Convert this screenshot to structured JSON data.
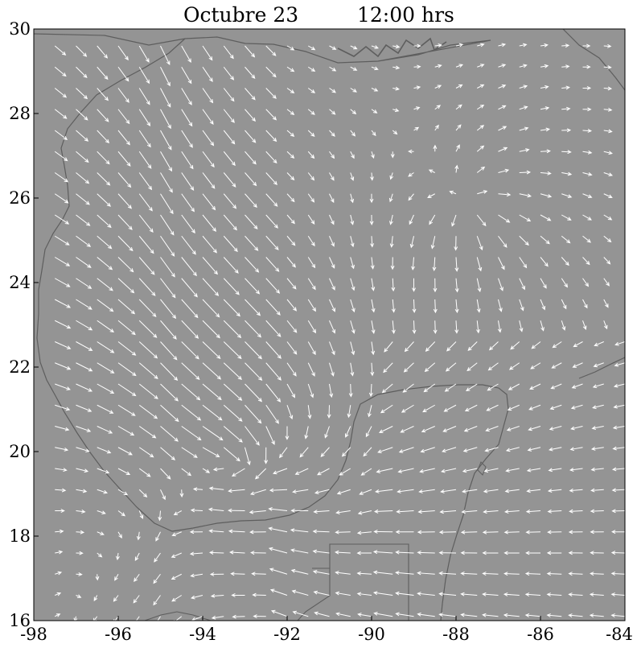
{
  "title": {
    "date": "Octubre 23",
    "time": "12:00 hrs"
  },
  "colors": {
    "plot_background": "#949494",
    "land": "#949494",
    "coastline": "#5e5e5e",
    "vectors": "#ffffff",
    "axis": "#000000"
  },
  "chart_data": {
    "type": "vector-field map",
    "xlim": [
      -98,
      -84
    ],
    "ylim": [
      16,
      30
    ],
    "x_ticks": [
      "-98",
      "-96",
      "-94",
      "-92",
      "-90",
      "-88",
      "-86",
      "-84"
    ],
    "y_ticks": [
      "16",
      "18",
      "20",
      "22",
      "24",
      "26",
      "28",
      "30"
    ],
    "grid": false,
    "legend": "none",
    "vector_grid": {
      "lon_start": -97.5,
      "lon_step": 0.5,
      "lon_count": 28,
      "lat_start": 16.1,
      "lat_step": 0.5,
      "lat_count": 28
    },
    "field_features": {
      "cyclonic_center": {
        "lon": -93.4,
        "lat": 19.9
      },
      "divergence_point": {
        "lon": -87.7,
        "lat": 25.8
      }
    }
  }
}
